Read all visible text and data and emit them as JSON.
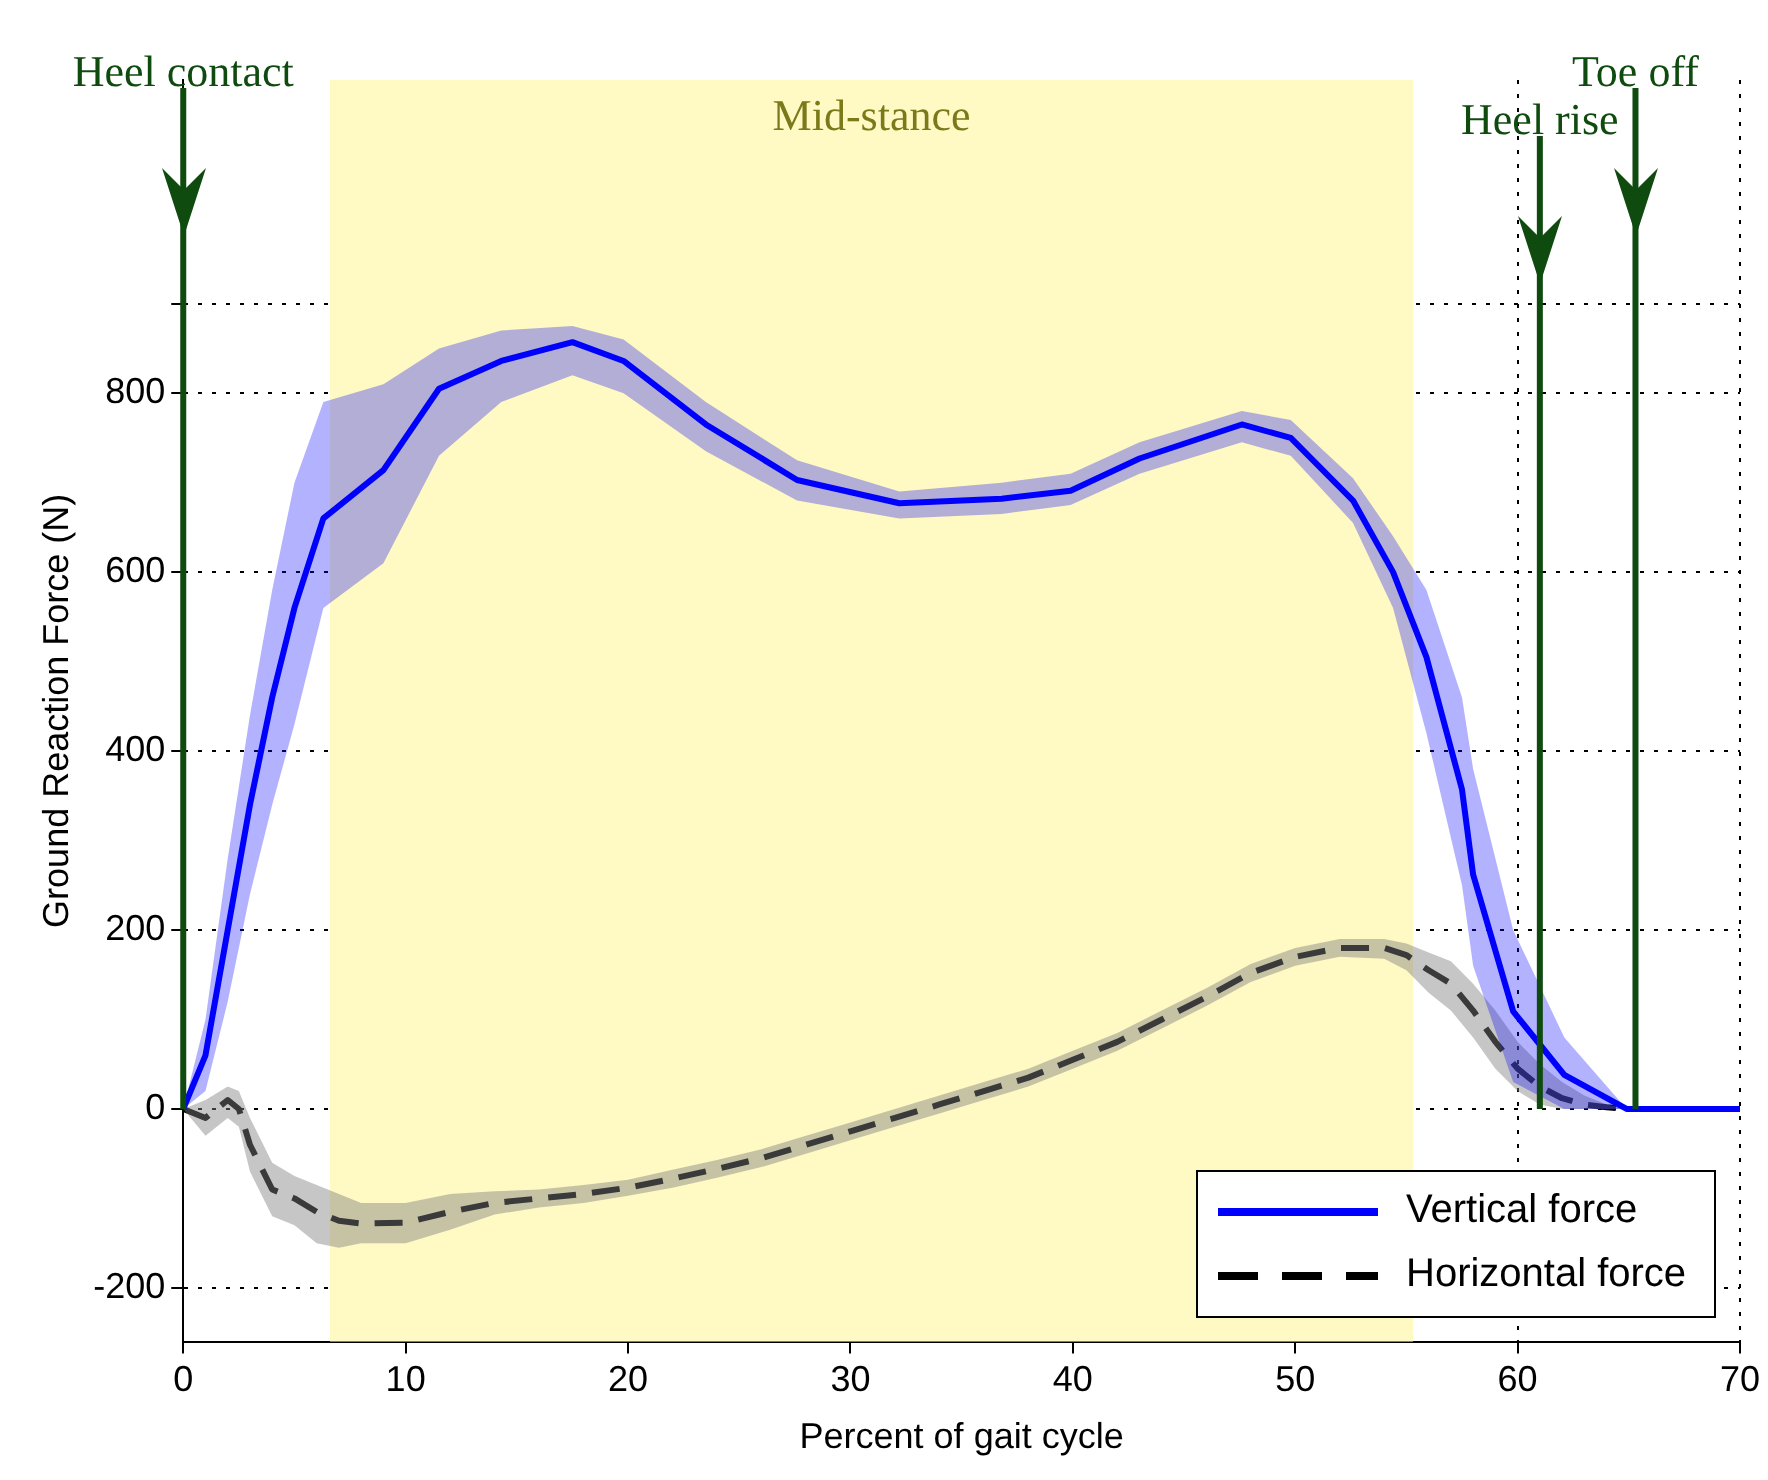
{
  "chart_data": {
    "type": "line",
    "xlabel": "Percent of gait cycle",
    "ylabel": "Ground Reaction Force (N)",
    "xlim": [
      0,
      70
    ],
    "xticks": [
      0,
      10,
      20,
      30,
      40,
      50,
      60,
      70
    ],
    "ylim": [
      -260,
      1150
    ],
    "yticks": [
      -200,
      0,
      200,
      400,
      600,
      800,
      {
        "value": 900,
        "label": null
      }
    ],
    "grid": true,
    "legend": "bottom right",
    "marker": "none",
    "series": [
      {
        "name": "Vertical force",
        "color": "#0000ff",
        "line_style": "solid",
        "x": [
          0,
          1,
          2,
          3,
          4,
          5,
          6.3,
          9,
          11.5,
          14.3,
          17.5,
          19.8,
          23.5,
          27.6,
          32.2,
          36.8,
          39.9,
          43,
          47.6,
          49.8,
          52.6,
          54.4,
          55.9,
          57.5,
          58,
          59.8,
          62.1,
          64.9,
          70
        ],
        "values": [
          0,
          60,
          200,
          340,
          460,
          560,
          660,
          714,
          805,
          836,
          857,
          836,
          765,
          703,
          677,
          682,
          691,
          727,
          765,
          750,
          680,
          600,
          505,
          357,
          262,
          109,
          38,
          0,
          0
        ],
        "lower": [
          0,
          20,
          120,
          240,
          340,
          430,
          560,
          610,
          730,
          790,
          820,
          800,
          735,
          680,
          660,
          665,
          675,
          710,
          745,
          730,
          655,
          560,
          420,
          250,
          160,
          30,
          0,
          0,
          0
        ],
        "upper": [
          0,
          100,
          280,
          440,
          580,
          700,
          790,
          810,
          850,
          870,
          875,
          860,
          790,
          725,
          690,
          700,
          710,
          745,
          780,
          770,
          705,
          640,
          580,
          460,
          380,
          200,
          80,
          0,
          0
        ]
      },
      {
        "name": "Horizontal force",
        "color": "#000000",
        "line_style": "dashed",
        "x": [
          0,
          1,
          2,
          2.5,
          3,
          4,
          5,
          6,
          7,
          8,
          10,
          12,
          14,
          16,
          18,
          20,
          22,
          24,
          26,
          28,
          30,
          32,
          34,
          36,
          38,
          40,
          42,
          44,
          46,
          48,
          50,
          52,
          54,
          55,
          56,
          57,
          58,
          59,
          60,
          61,
          62,
          63,
          64,
          65,
          70
        ],
        "values": [
          0,
          -10,
          10,
          0,
          -40,
          -90,
          -100,
          -115,
          -125,
          -128,
          -127,
          -115,
          -105,
          -100,
          -95,
          -88,
          -78,
          -67,
          -55,
          -40,
          -25,
          -10,
          5,
          20,
          35,
          55,
          75,
          100,
          125,
          152,
          170,
          180,
          180,
          172,
          155,
          140,
          110,
          75,
          45,
          25,
          12,
          5,
          2,
          0,
          0
        ],
        "lower": [
          0,
          -30,
          -10,
          -20,
          -70,
          -120,
          -130,
          -150,
          -155,
          -150,
          -150,
          -135,
          -118,
          -110,
          -105,
          -97,
          -88,
          -77,
          -65,
          -50,
          -35,
          -20,
          -5,
          10,
          25,
          45,
          65,
          90,
          115,
          142,
          160,
          170,
          168,
          155,
          130,
          110,
          80,
          45,
          20,
          5,
          0,
          0,
          0,
          0,
          0
        ],
        "upper": [
          0,
          10,
          25,
          20,
          -10,
          -60,
          -75,
          -85,
          -95,
          -105,
          -105,
          -95,
          -92,
          -90,
          -85,
          -79,
          -68,
          -57,
          -45,
          -30,
          -15,
          0,
          15,
          30,
          45,
          65,
          85,
          110,
          135,
          162,
          180,
          190,
          190,
          185,
          175,
          165,
          140,
          110,
          75,
          50,
          30,
          15,
          5,
          0,
          0
        ]
      }
    ],
    "bands": [
      {
        "axis": "x",
        "from": 6.6,
        "to": 55.3,
        "label": "Mid-stance",
        "color": "#fff9c4"
      }
    ],
    "ref_lines": [
      {
        "axis": "x",
        "value": 0,
        "label": "Heel contact",
        "color": "#0f4a0f"
      },
      {
        "axis": "x",
        "value": 61,
        "label": "Heel rise",
        "color": "#0f4a0f"
      },
      {
        "axis": "x",
        "value": 65.3,
        "label": "Toe off",
        "color": "#0f4a0f"
      }
    ]
  }
}
